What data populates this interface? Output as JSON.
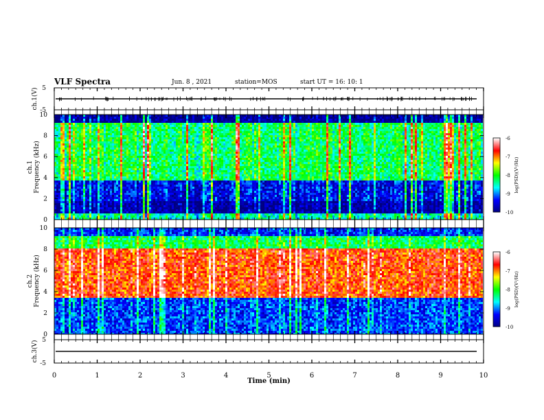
{
  "header": {
    "title": "VLF Spectra",
    "date": "Jun. 8 , 2021",
    "station": "station=MOS",
    "start_ut": "start UT =  16: 10: 1"
  },
  "chart_data": [
    {
      "type": "line",
      "panel": "ch1-waveform",
      "ylabel": "ch.1(V)",
      "y_ticks": [
        "5",
        "-5"
      ],
      "ylim": [
        -5,
        5
      ],
      "xlim": [
        0,
        10
      ],
      "series": [
        {
          "values_desc": [
            0.0
          ]
        }
      ]
    },
    {
      "type": "heatmap",
      "panel": "ch1-spectrogram",
      "ylabel": "ch.1\nFrequency (kHz)",
      "ylabel_line1": "ch.1",
      "ylabel_line2": "Frequency (kHz)",
      "y_ticks": [
        "0",
        "2",
        "4",
        "6",
        "8",
        "10"
      ],
      "ylim": [
        0,
        10
      ],
      "xlim": [
        0,
        10
      ],
      "colorbar": {
        "label": "log(PSD)(V²/Hz)",
        "ticks": [
          "-6",
          "-7",
          "-8",
          "-9",
          "-10"
        ],
        "range": [
          -10,
          -6
        ]
      },
      "bands_khz": [
        {
          "from": 0,
          "to": 0.5,
          "level": -8.5
        },
        {
          "from": 0.5,
          "to": 1.8,
          "level": -9.8
        },
        {
          "from": 1.8,
          "to": 3.8,
          "level": -9.4
        },
        {
          "from": 3.8,
          "to": 9.2,
          "level": -8.2
        },
        {
          "from": 9.2,
          "to": 10,
          "level": -9.9
        }
      ]
    },
    {
      "type": "heatmap",
      "panel": "ch2-spectrogram",
      "ylabel_line1": "ch.2",
      "ylabel_line2": "Frequency (kHz)",
      "y_ticks": [
        "0",
        "2",
        "4",
        "6",
        "8",
        "10"
      ],
      "ylim": [
        0,
        10
      ],
      "xlim": [
        0,
        10
      ],
      "colorbar": {
        "label": "log(PSD)(V²/Hz)",
        "ticks": [
          "-6",
          "-7",
          "-8",
          "-9",
          "-10"
        ],
        "range": [
          -10,
          -6
        ]
      },
      "bands_khz": [
        {
          "from": 0,
          "to": 3.5,
          "level": -9.2
        },
        {
          "from": 3.5,
          "to": 8.0,
          "level": -6.8
        },
        {
          "from": 8.0,
          "to": 9.2,
          "level": -8.2
        },
        {
          "from": 9.2,
          "to": 10,
          "level": -9.3
        }
      ]
    },
    {
      "type": "line",
      "panel": "ch3-waveform",
      "ylabel": "ch.3(V)",
      "y_ticks": [
        "5",
        "-5"
      ],
      "ylim": [
        -5,
        5
      ],
      "xlim": [
        0,
        10
      ],
      "series": [
        {
          "values_desc": [
            0.0
          ]
        }
      ]
    }
  ],
  "x_axis": {
    "label": "Time (min)",
    "ticks": [
      "0",
      "1",
      "2",
      "3",
      "4",
      "5",
      "6",
      "7",
      "8",
      "9",
      "10"
    ],
    "xlim": [
      0,
      10
    ]
  },
  "colors": {
    "colormap": [
      "#000080",
      "#0000ff",
      "#00ffff",
      "#00ff00",
      "#ffff00",
      "#ff0000",
      "#ffffff"
    ]
  }
}
